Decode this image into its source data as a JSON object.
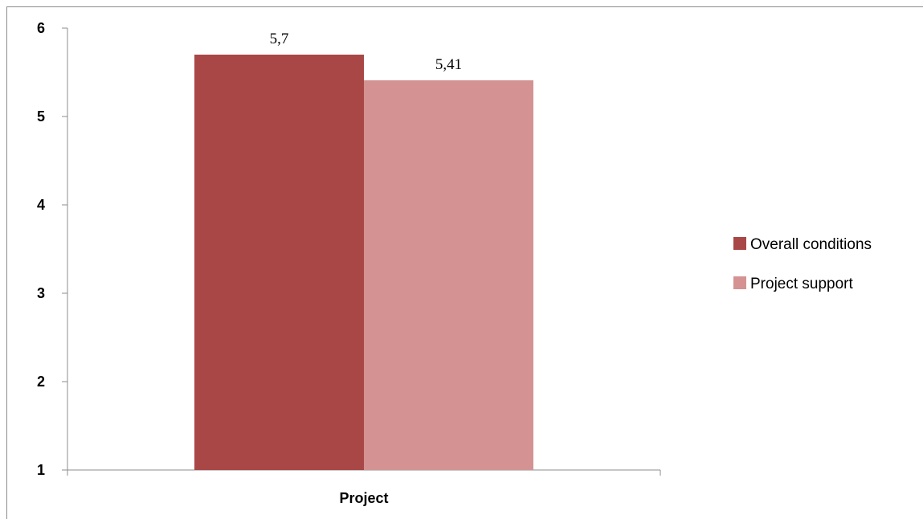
{
  "chart_data": {
    "type": "bar",
    "categories": [
      "Project"
    ],
    "series": [
      {
        "name": "Overall conditions",
        "values": [
          5.7
        ],
        "label": "5,7",
        "color": "#a84745"
      },
      {
        "name": "Project support",
        "values": [
          5.41
        ],
        "label": "5,41",
        "color": "#d49292"
      }
    ],
    "ylim": [
      1,
      6
    ],
    "yticks": [
      "1",
      "2",
      "3",
      "4",
      "5",
      "6"
    ],
    "grid": false,
    "legend_position": "right"
  }
}
